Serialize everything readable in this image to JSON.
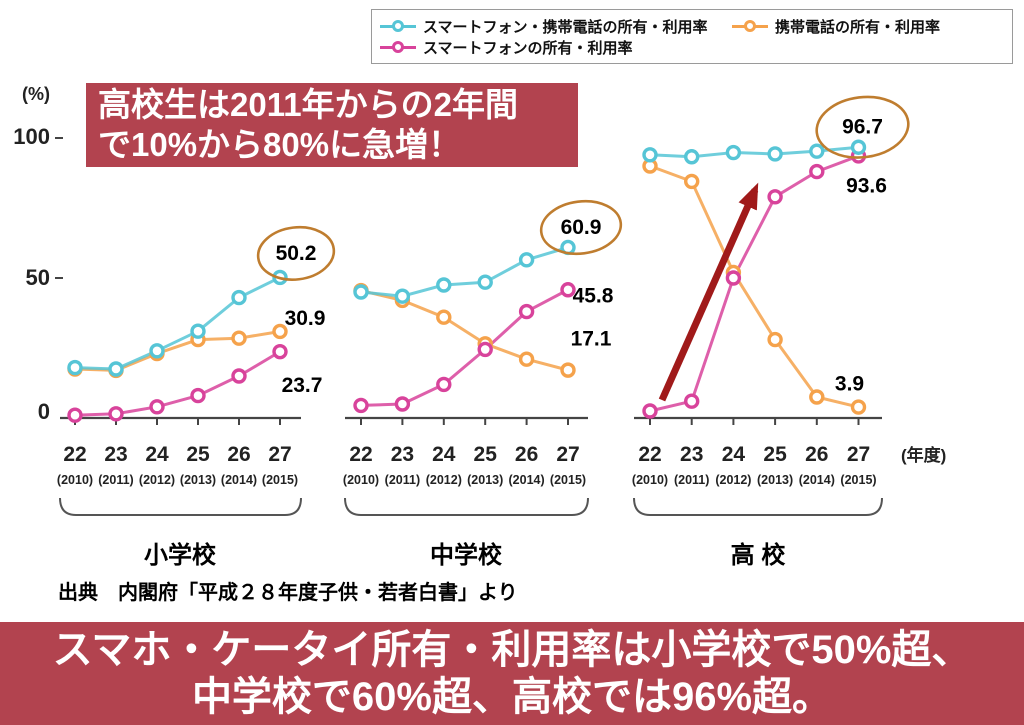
{
  "colors": {
    "banner_bg": "#b2434f",
    "callout_bg": "#b2434f",
    "arrow": "#a01a1a",
    "circle_stroke": "#bf7d2f",
    "axis": "#444444"
  },
  "legend": {
    "items": [
      {
        "id": "smartphone-and-keitai",
        "label": "スマートフォン・携帯電話の所有・利用率",
        "color": "#56c5d6"
      },
      {
        "id": "keitai",
        "label": "携帯電話の所有・利用率",
        "color": "#f5a24b"
      },
      {
        "id": "smartphone",
        "label": "スマートフォンの所有・利用率",
        "color": "#d8439b"
      }
    ]
  },
  "callout": {
    "line1": "高校生は2011年からの2年間",
    "line2": "で10%から80%に急増！"
  },
  "axis": {
    "percent_label": "(%)",
    "yticks": [
      "100",
      "50",
      "0"
    ],
    "x_unit_label": "(年度)"
  },
  "chart_data": {
    "type": "line",
    "title": "",
    "x_categories": [
      "22",
      "23",
      "24",
      "25",
      "26",
      "27"
    ],
    "x_year_labels": [
      "(2010)",
      "(2011)",
      "(2012)",
      "(2013)",
      "(2014)",
      "(2015)"
    ],
    "ylim": [
      0,
      100
    ],
    "legend_position": "top-right",
    "grid": false,
    "groups": [
      {
        "label": "小学校",
        "series": [
          {
            "name": "スマートフォン・携帯電話の所有・利用率",
            "color": "#56c5d6",
            "values": [
              18,
              17.5,
              24,
              31,
              43,
              50.2
            ],
            "end_label": "50.2",
            "circled": true
          },
          {
            "name": "携帯電話の所有・利用率",
            "color": "#f5a24b",
            "values": [
              17.5,
              17,
              23,
              28,
              28.5,
              30.9
            ],
            "end_label": "30.9",
            "circled": false
          },
          {
            "name": "スマートフォンの所有・利用率",
            "color": "#d8439b",
            "values": [
              1,
              1.5,
              4,
              8,
              15,
              23.7
            ],
            "end_label": "23.7",
            "circled": false
          }
        ]
      },
      {
        "label": "中学校",
        "series": [
          {
            "name": "スマートフォン・携帯電話の所有・利用率",
            "color": "#56c5d6",
            "values": [
              45,
              43.5,
              47.5,
              48.5,
              56.5,
              60.9
            ],
            "end_label": "60.9",
            "circled": true
          },
          {
            "name": "携帯電話の所有・利用率",
            "color": "#f5a24b",
            "values": [
              45.5,
              42,
              36,
              26.5,
              21,
              17.1
            ],
            "end_label": "17.1",
            "circled": false
          },
          {
            "name": "スマートフォンの所有・利用率",
            "color": "#d8439b",
            "values": [
              4.5,
              5,
              12,
              24.5,
              38,
              45.8
            ],
            "end_label": "45.8",
            "circled": false
          }
        ]
      },
      {
        "label": "高 校",
        "series": [
          {
            "name": "スマートフォン・携帯電話の所有・利用率",
            "color": "#56c5d6",
            "values": [
              94,
              93.3,
              94.8,
              94.3,
              95.3,
              96.7
            ],
            "end_label": "96.7",
            "circled": true
          },
          {
            "name": "携帯電話の所有・利用率",
            "color": "#f5a24b",
            "values": [
              90,
              84.5,
              52,
              28,
              7.5,
              3.9
            ],
            "end_label": "3.9",
            "circled": false
          },
          {
            "name": "スマートフォンの所有・利用率",
            "color": "#d8439b",
            "values": [
              2.5,
              6,
              50,
              79,
              88,
              93.6
            ],
            "end_label": "93.6",
            "circled": false
          }
        ]
      }
    ],
    "annotation": {
      "arrow_on_group": "高 校"
    }
  },
  "source_text": "出典　内閣府「平成２８年度子供・若者白書」より",
  "banner": {
    "line1": "スマホ・ケータイ所有・利用率は小学校で50%超、",
    "line2": "中学校で60%超、高校では96%超。"
  }
}
